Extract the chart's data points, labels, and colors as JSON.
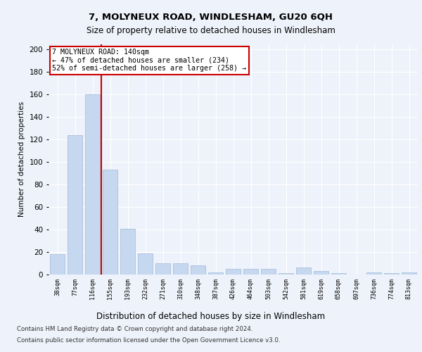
{
  "title1": "7, MOLYNEUX ROAD, WINDLESHAM, GU20 6QH",
  "title2": "Size of property relative to detached houses in Windlesham",
  "xlabel": "Distribution of detached houses by size in Windlesham",
  "ylabel": "Number of detached properties",
  "categories": [
    "38sqm",
    "77sqm",
    "116sqm",
    "155sqm",
    "193sqm",
    "232sqm",
    "271sqm",
    "310sqm",
    "348sqm",
    "387sqm",
    "426sqm",
    "464sqm",
    "503sqm",
    "542sqm",
    "581sqm",
    "619sqm",
    "658sqm",
    "697sqm",
    "736sqm",
    "774sqm",
    "813sqm"
  ],
  "values": [
    18,
    124,
    160,
    93,
    41,
    19,
    10,
    10,
    8,
    2,
    5,
    5,
    5,
    1,
    6,
    3,
    1,
    0,
    2,
    1,
    2
  ],
  "bar_color": "#c5d8f0",
  "bar_edge_color": "#a0b8d8",
  "vline_x_idx": 2,
  "vline_color": "#cc0000",
  "annotation_text": "7 MOLYNEUX ROAD: 140sqm\n← 47% of detached houses are smaller (234)\n52% of semi-detached houses are larger (258) →",
  "annotation_box_color": "#ffffff",
  "annotation_box_edge": "#cc0000",
  "ylim": [
    0,
    205
  ],
  "yticks": [
    0,
    20,
    40,
    60,
    80,
    100,
    120,
    140,
    160,
    180,
    200
  ],
  "footer1": "Contains HM Land Registry data © Crown copyright and database right 2024.",
  "footer2": "Contains public sector information licensed under the Open Government Licence v3.0.",
  "bg_color": "#eef2fa",
  "plot_bg_color": "#eef2fa"
}
